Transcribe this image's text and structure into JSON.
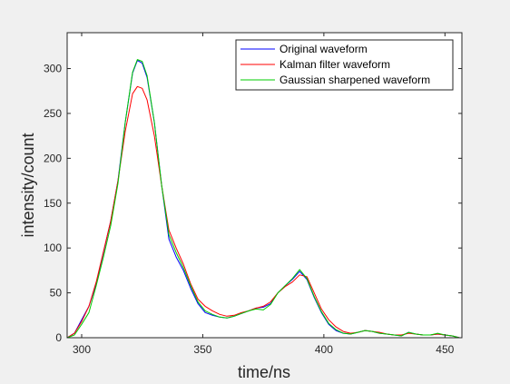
{
  "chart_data": {
    "type": "line",
    "title": "",
    "xlabel": "time/ns",
    "ylabel": "intensity/count",
    "xlim": [
      294,
      457
    ],
    "ylim": [
      0,
      340
    ],
    "xticks": [
      300,
      350,
      400,
      450
    ],
    "yticks": [
      0,
      50,
      100,
      150,
      200,
      250,
      300
    ],
    "grid": false,
    "legend_position": "top-right",
    "series": [
      {
        "name": "Original waveform",
        "color": "#0000ff",
        "x": [
          294,
          297,
          300,
          303,
          306,
          309,
          312,
          315,
          318,
          321,
          323,
          325,
          327,
          330,
          333,
          336,
          339,
          342,
          345,
          348,
          351,
          354,
          357,
          360,
          363,
          366,
          369,
          372,
          375,
          378,
          381,
          384,
          387,
          390,
          393,
          396,
          399,
          402,
          405,
          408,
          411,
          414,
          417,
          420,
          423,
          426,
          429,
          432,
          435,
          438,
          441,
          444,
          447,
          450,
          453,
          456
        ],
        "values": [
          0,
          5,
          20,
          35,
          60,
          95,
          130,
          175,
          240,
          295,
          309,
          306,
          290,
          240,
          170,
          110,
          90,
          75,
          55,
          38,
          28,
          25,
          23,
          22,
          24,
          27,
          30,
          33,
          34,
          38,
          50,
          58,
          65,
          74,
          65,
          45,
          28,
          15,
          8,
          5,
          4,
          6,
          8,
          7,
          5,
          4,
          3,
          2,
          6,
          4,
          3,
          3,
          4,
          3,
          2,
          0
        ]
      },
      {
        "name": "Kalman filter waveform",
        "color": "#ff0000",
        "x": [
          294,
          297,
          300,
          303,
          306,
          309,
          312,
          315,
          318,
          321,
          323,
          325,
          327,
          330,
          333,
          336,
          339,
          342,
          345,
          348,
          351,
          354,
          357,
          360,
          363,
          366,
          369,
          372,
          375,
          378,
          381,
          384,
          387,
          390,
          393,
          396,
          399,
          402,
          405,
          408,
          411,
          414,
          417,
          420,
          423,
          426,
          429,
          432,
          435,
          438,
          441,
          444,
          447,
          450,
          453,
          456
        ],
        "values": [
          0,
          5,
          18,
          35,
          62,
          96,
          130,
          175,
          230,
          272,
          280,
          278,
          265,
          225,
          170,
          120,
          100,
          82,
          60,
          43,
          35,
          30,
          26,
          24,
          25,
          28,
          30,
          33,
          35,
          40,
          50,
          57,
          62,
          70,
          68,
          50,
          32,
          20,
          12,
          7,
          5,
          6,
          8,
          7,
          6,
          4,
          3,
          3,
          5,
          4,
          3,
          3,
          4,
          3,
          2,
          0
        ]
      },
      {
        "name": "Gaussian sharpened waveform",
        "color": "#00cc00",
        "x": [
          294,
          297,
          300,
          303,
          306,
          309,
          312,
          315,
          318,
          321,
          323,
          325,
          327,
          330,
          333,
          336,
          339,
          342,
          345,
          348,
          351,
          354,
          357,
          360,
          363,
          366,
          369,
          372,
          375,
          378,
          381,
          384,
          387,
          390,
          393,
          396,
          399,
          402,
          405,
          408,
          411,
          414,
          417,
          420,
          423,
          426,
          429,
          432,
          435,
          438,
          441,
          444,
          447,
          450,
          453,
          456
        ],
        "values": [
          0,
          3,
          15,
          28,
          58,
          90,
          125,
          172,
          240,
          296,
          310,
          308,
          292,
          240,
          170,
          115,
          95,
          78,
          58,
          40,
          30,
          26,
          23,
          22,
          24,
          27,
          30,
          32,
          31,
          37,
          50,
          58,
          66,
          76,
          66,
          46,
          29,
          16,
          9,
          5,
          4,
          6,
          8,
          7,
          5,
          4,
          3,
          2,
          6,
          4,
          3,
          3,
          5,
          3,
          2,
          0
        ]
      }
    ]
  }
}
